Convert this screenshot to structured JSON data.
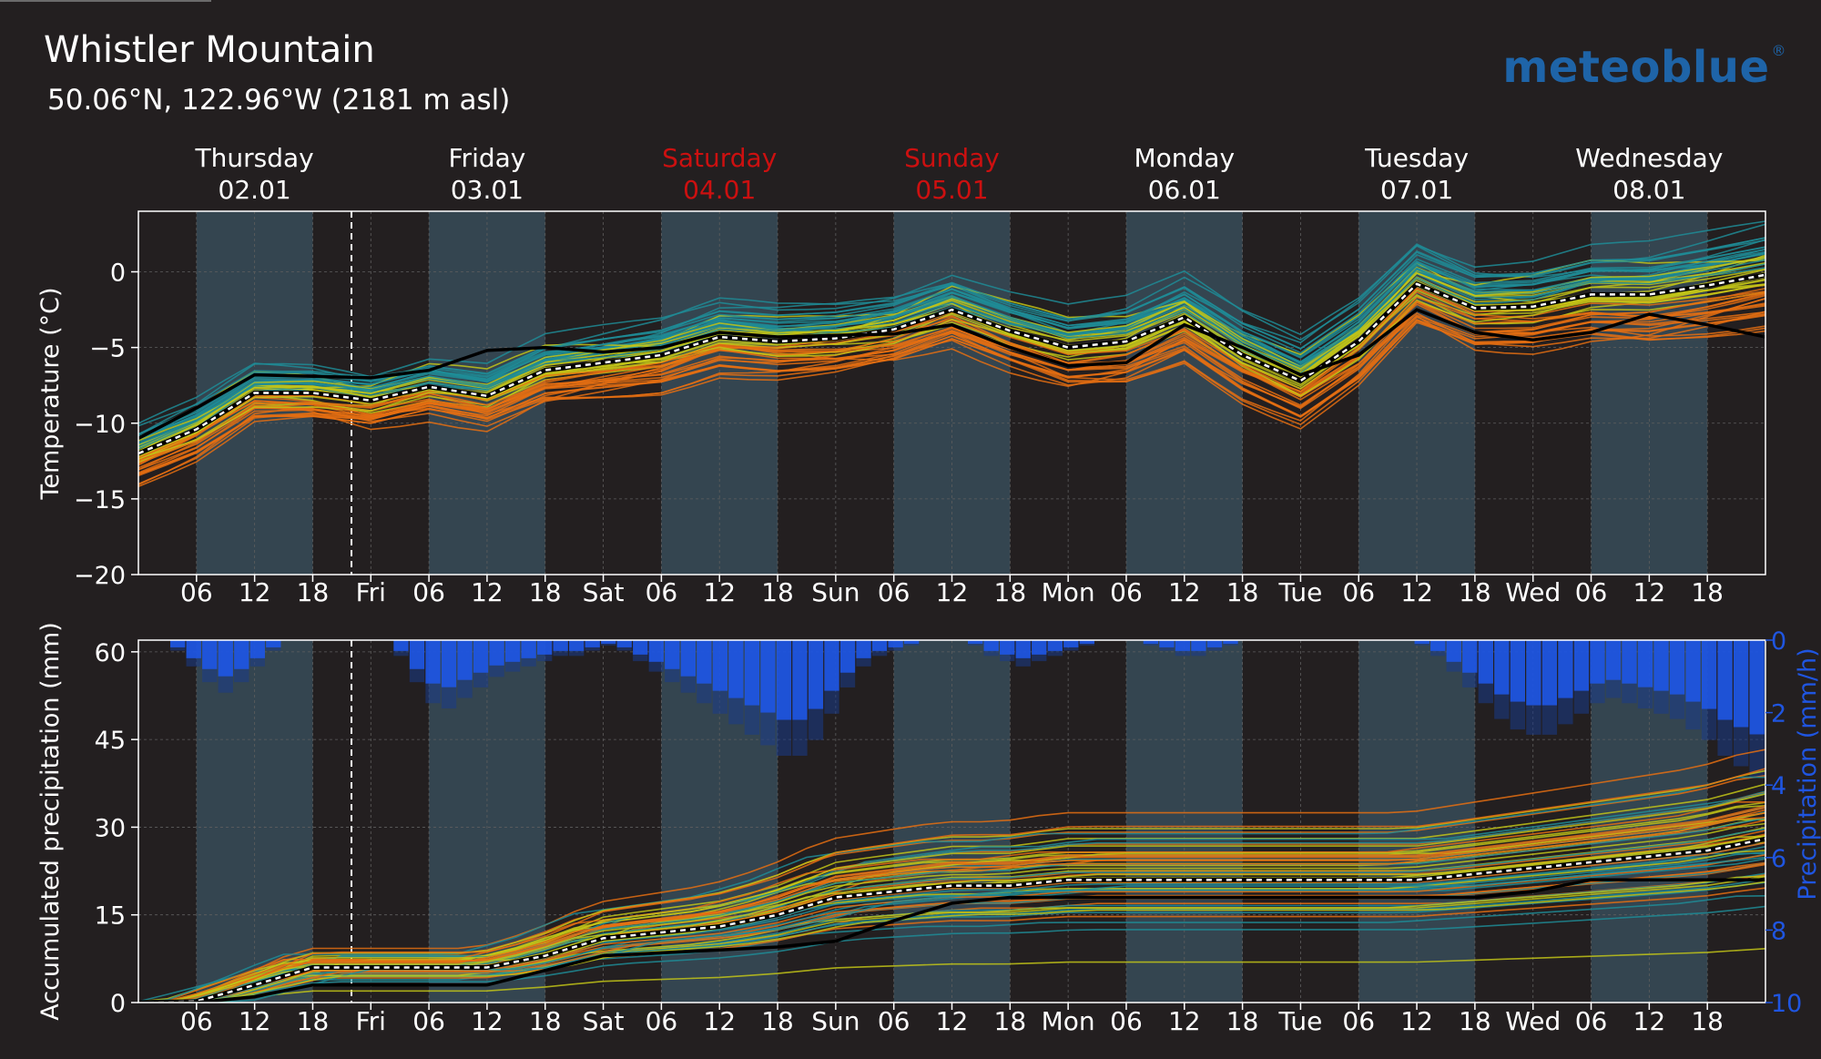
{
  "location": {
    "title": "Whistler Mountain",
    "coordinates": "50.06°N, 122.96°W (2181 m asl)"
  },
  "brand": {
    "logo": "meteoblue"
  },
  "colors": {
    "background": "#231f20",
    "night_band": "#344550",
    "weekend_day": "#cc1010",
    "precip_bar": "#1f55e0",
    "ensemble_cold": "#1e8c96",
    "ensemble_mid": "#c2c418",
    "ensemble_warm": "#e56f12"
  },
  "days": [
    {
      "name": "Thursday",
      "date": "02.01",
      "weekend": false
    },
    {
      "name": "Friday",
      "date": "03.01",
      "weekend": false
    },
    {
      "name": "Saturday",
      "date": "04.01",
      "weekend": true
    },
    {
      "name": "Sunday",
      "date": "05.01",
      "weekend": true
    },
    {
      "name": "Monday",
      "date": "06.01",
      "weekend": false
    },
    {
      "name": "Tuesday",
      "date": "07.01",
      "weekend": false
    },
    {
      "name": "Wednesday",
      "date": "08.01",
      "weekend": false
    }
  ],
  "x_ticks": [
    "06",
    "12",
    "18",
    "Fri",
    "06",
    "12",
    "18",
    "Sat",
    "06",
    "12",
    "18",
    "Sun",
    "06",
    "12",
    "18",
    "Mon",
    "06",
    "12",
    "18",
    "Tue",
    "06",
    "12",
    "18",
    "Wed",
    "06",
    "12",
    "18"
  ],
  "chart_data": [
    {
      "type": "line",
      "title": "",
      "ylabel": "Temperature (°C)",
      "ylim": [
        -20,
        4
      ],
      "yticks": [
        0,
        -5,
        -10,
        -15,
        -20
      ],
      "x_unit": "hours since Thursday 02.01 00:00",
      "xlim": [
        0,
        168
      ],
      "now_marker_hour": 22,
      "series": [
        {
          "name": "",
          "style": "white-dashed",
          "x": [
            0,
            6,
            12,
            18,
            24,
            30,
            36,
            42,
            48,
            54,
            60,
            66,
            72,
            78,
            84,
            90,
            96,
            102,
            108,
            114,
            120,
            126,
            132,
            138,
            144,
            150,
            156,
            162,
            168
          ],
          "values": [
            -12,
            -10.4,
            -8,
            -8,
            -8.5,
            -7.6,
            -8.2,
            -6.5,
            -6,
            -5.5,
            -4.3,
            -4.6,
            -4.4,
            -3.8,
            -2.5,
            -3.9,
            -5,
            -4.6,
            -3,
            -5.5,
            -7.2,
            -4.6,
            -0.8,
            -2.4,
            -2.3,
            -1.5,
            -1.5,
            -0.9,
            -0.2
          ]
        },
        {
          "name": "",
          "style": "black-solid",
          "x": [
            0,
            6,
            12,
            18,
            24,
            30,
            36,
            42,
            48,
            54,
            60,
            66,
            72,
            78,
            84,
            90,
            96,
            102,
            108,
            114,
            120,
            126,
            132,
            138,
            144,
            150,
            156,
            162,
            168
          ],
          "values": [
            -11,
            -9,
            -6.8,
            -6.9,
            -7,
            -6.5,
            -5.2,
            -5,
            -5.3,
            -5,
            -4,
            -4.3,
            -4.2,
            -4.1,
            -3.5,
            -5,
            -6.2,
            -6,
            -3.5,
            -5,
            -6.8,
            -5.5,
            -2.5,
            -4,
            -4.5,
            -4,
            -2.8,
            -3.5,
            -4.3
          ]
        }
      ]
    },
    {
      "type": "line",
      "title": "",
      "ylabel": "Accumulated precipitation (mm)",
      "ylabel_right": "Precipitation (mm/h)",
      "ylim": [
        0,
        62
      ],
      "yticks": [
        60,
        45,
        30,
        15,
        0
      ],
      "right_axis_ticks": [
        0,
        2,
        4,
        6,
        8,
        10
      ],
      "x_unit": "hours since Thursday 02.01 00:00",
      "xlim": [
        0,
        168
      ],
      "series": [
        {
          "name": "",
          "style": "white-dashed",
          "x": [
            0,
            6,
            12,
            18,
            24,
            30,
            36,
            42,
            48,
            54,
            60,
            66,
            72,
            78,
            84,
            90,
            96,
            102,
            108,
            114,
            120,
            126,
            132,
            138,
            144,
            150,
            156,
            162,
            168
          ],
          "values": [
            0,
            0.2,
            3,
            6,
            6,
            6,
            6,
            8,
            11,
            12,
            13,
            15,
            18,
            19,
            20,
            20,
            21,
            21,
            21,
            21,
            21,
            21,
            21,
            22,
            23,
            24,
            25,
            26,
            28
          ]
        },
        {
          "name": "",
          "style": "black-solid",
          "x": [
            0,
            6,
            12,
            18,
            24,
            30,
            36,
            42,
            48,
            54,
            60,
            66,
            72,
            78,
            84,
            90,
            96,
            102,
            108,
            114,
            120,
            126,
            132,
            138,
            144,
            150,
            156,
            162,
            168
          ],
          "values": [
            0,
            0,
            1,
            3,
            3,
            3,
            3,
            5.5,
            8,
            8.5,
            9,
            9.5,
            10.5,
            14,
            17,
            18,
            18,
            18,
            18,
            18,
            18,
            18,
            18,
            18,
            19,
            21,
            21,
            21,
            21
          ]
        }
      ],
      "precipitation_rate_mm_h": [
        0,
        0,
        0.2,
        0.5,
        0.8,
        1.0,
        0.8,
        0.5,
        0.2,
        0,
        0,
        0,
        0,
        0,
        0,
        0,
        0.3,
        0.8,
        1.2,
        1.3,
        1.1,
        0.9,
        0.7,
        0.6,
        0.5,
        0.4,
        0.3,
        0.3,
        0.2,
        0.1,
        0.2,
        0.4,
        0.6,
        0.8,
        1.0,
        1.2,
        1.4,
        1.6,
        1.8,
        2.0,
        2.2,
        2.2,
        1.9,
        1.4,
        0.9,
        0.5,
        0.3,
        0.2,
        0.1,
        0,
        0,
        0,
        0.1,
        0.3,
        0.4,
        0.5,
        0.4,
        0.3,
        0.2,
        0.1,
        0,
        0,
        0,
        0.1,
        0.2,
        0.3,
        0.3,
        0.2,
        0.1,
        0,
        0,
        0,
        0,
        0,
        0,
        0,
        0,
        0,
        0,
        0,
        0.1,
        0.3,
        0.6,
        0.9,
        1.2,
        1.5,
        1.7,
        1.8,
        1.8,
        1.6,
        1.4,
        1.2,
        1.1,
        1.2,
        1.3,
        1.4,
        1.5,
        1.7,
        1.9,
        2.2,
        2.4,
        2.6
      ]
    }
  ]
}
